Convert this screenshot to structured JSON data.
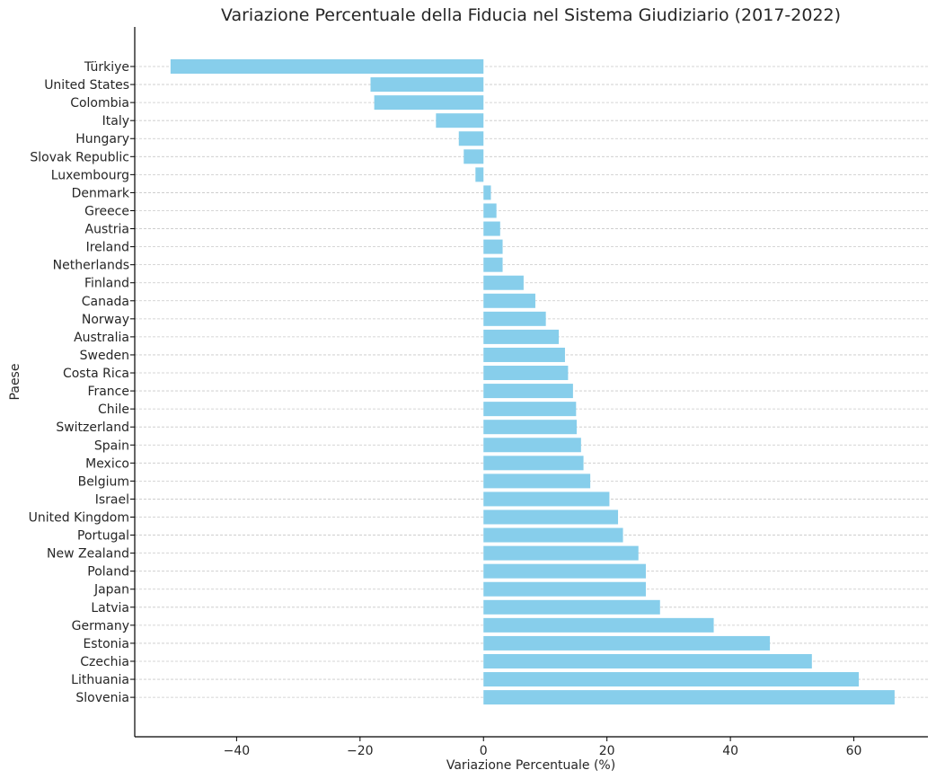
{
  "chart_data": {
    "type": "bar",
    "orientation": "horizontal",
    "title": "Variazione Percentuale della Fiducia nel Sistema Giudiziario (2017-2022)",
    "xlabel": "Variazione Percentuale (%)",
    "ylabel": "Paese",
    "xlim": [
      -56.5,
      72.0
    ],
    "xticks": [
      -40,
      -20,
      0,
      20,
      40,
      60
    ],
    "xtick_labels": [
      "−40",
      "−20",
      "0",
      "20",
      "40",
      "60"
    ],
    "grid": "horizontal dashed",
    "bar_color": "#87ceeb",
    "categories": [
      "Türkiye",
      "United States",
      "Colombia",
      "Italy",
      "Hungary",
      "Slovak Republic",
      "Luxembourg",
      "Denmark",
      "Greece",
      "Austria",
      "Ireland",
      "Netherlands",
      "Finland",
      "Canada",
      "Norway",
      "Australia",
      "Sweden",
      "Costa Rica",
      "France",
      "Chile",
      "Switzerland",
      "Spain",
      "Mexico",
      "Belgium",
      "Israel",
      "United Kingdom",
      "Portugal",
      "New Zealand",
      "Poland",
      "Japan",
      "Latvia",
      "Germany",
      "Estonia",
      "Czechia",
      "Lithuania",
      "Slovenia"
    ],
    "values": [
      -50.7,
      -18.3,
      -17.7,
      -7.7,
      -4.0,
      -3.2,
      -1.3,
      1.2,
      2.1,
      2.7,
      3.1,
      3.1,
      6.5,
      8.4,
      10.1,
      12.2,
      13.2,
      13.7,
      14.5,
      15.0,
      15.1,
      15.8,
      16.2,
      17.3,
      20.4,
      21.8,
      22.6,
      25.1,
      26.3,
      26.3,
      28.6,
      37.3,
      46.4,
      53.2,
      60.8,
      66.6
    ]
  }
}
